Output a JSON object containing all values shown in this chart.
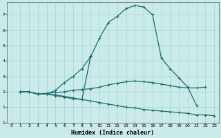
{
  "xlabel": "Humidex (Indice chaleur)",
  "background_color": "#cbeaea",
  "grid_color": "#a8d8d8",
  "line_color": "#1a6b6b",
  "xlim": [
    -0.5,
    23.5
  ],
  "ylim": [
    0,
    7.8
  ],
  "yticks": [
    0,
    1,
    2,
    3,
    4,
    5,
    6,
    7
  ],
  "xticks": [
    0,
    1,
    2,
    3,
    4,
    5,
    6,
    7,
    8,
    9,
    10,
    11,
    12,
    13,
    14,
    15,
    16,
    17,
    18,
    19,
    20,
    21,
    22,
    23
  ],
  "line1_x": [
    1,
    2,
    3,
    4,
    5,
    6,
    7,
    8,
    9,
    10,
    11,
    12,
    13,
    14,
    15,
    16,
    17,
    18,
    19,
    20,
    21
  ],
  "line1_y": [
    2.0,
    2.0,
    1.85,
    1.85,
    2.1,
    2.6,
    3.0,
    3.5,
    4.3,
    5.5,
    6.5,
    6.9,
    7.4,
    7.6,
    7.5,
    7.0,
    4.2,
    3.5,
    2.9,
    2.3,
    1.1
  ],
  "line2_x": [
    1,
    2,
    3,
    4,
    5,
    6,
    7,
    8,
    9,
    10,
    11,
    12,
    13,
    14,
    15,
    16,
    17,
    18,
    19,
    20,
    21,
    22
  ],
  "line2_y": [
    2.0,
    2.0,
    1.85,
    1.9,
    1.95,
    2.0,
    2.1,
    2.15,
    2.2,
    2.3,
    2.45,
    2.55,
    2.65,
    2.7,
    2.65,
    2.6,
    2.5,
    2.4,
    2.3,
    2.25,
    2.25,
    2.3
  ],
  "line3_x": [
    1,
    2,
    3,
    4,
    5,
    6,
    7,
    8,
    9,
    10,
    11,
    12,
    13,
    14,
    15,
    16,
    17,
    18,
    19,
    20,
    21,
    22,
    23
  ],
  "line3_y": [
    2.0,
    2.0,
    1.85,
    1.85,
    1.75,
    1.65,
    1.55,
    1.5,
    1.4,
    1.3,
    1.2,
    1.1,
    1.0,
    0.95,
    0.85,
    0.8,
    0.75,
    0.7,
    0.65,
    0.6,
    0.5,
    0.5,
    0.45
  ],
  "line4_x": [
    1,
    2,
    3,
    4,
    5,
    6,
    7,
    8,
    9
  ],
  "line4_y": [
    2.0,
    2.0,
    1.85,
    1.85,
    1.8,
    1.7,
    1.6,
    1.5,
    4.35
  ]
}
